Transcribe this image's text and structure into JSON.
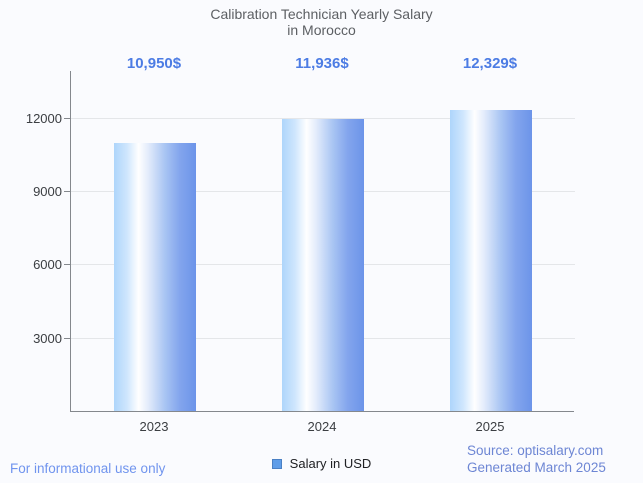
{
  "title_lines": {
    "0": "Calibration Technician Yearly Salary",
    "1": "in Morocco"
  },
  "chart_data": {
    "type": "bar",
    "title": "Calibration Technician Yearly Salary in Morocco",
    "categories": [
      "2023",
      "2024",
      "2025"
    ],
    "values": [
      10950,
      11936,
      12329
    ],
    "value_labels": [
      "10,950$",
      "11,936$",
      "12,329$"
    ],
    "series_name": "Salary in USD",
    "yticks": [
      3000,
      6000,
      9000,
      12000
    ],
    "ytick_labels": [
      "3000",
      "6000",
      "9000",
      "12000"
    ],
    "ylim": [
      0,
      13950
    ],
    "xlabel": "",
    "ylabel": "",
    "grid": true,
    "legend_position": "bottom"
  },
  "legend": {
    "label": "Salary in USD"
  },
  "footer": {
    "disclaimer": "For informational use only",
    "source_line1": "Source: optisalary.com",
    "source_line2": "Generated March 2025"
  },
  "colors": {
    "background": "#fafbfe",
    "title_text": "#5c5f63",
    "value_label_text": "#4c7ce4",
    "axis_text": "#3b3e42",
    "gridline": "#e4e6e9",
    "axis_line": "#84888d",
    "bar_gradient_left": "#aed5fb",
    "bar_gradient_mid": "#ffffff",
    "bar_gradient_right": "#6c94e9",
    "legend_swatch_fill": "#5f9de8",
    "legend_swatch_border": "#4a80c4",
    "disclaimer_text": "#7094ee",
    "source_text": "#6d86d4"
  }
}
